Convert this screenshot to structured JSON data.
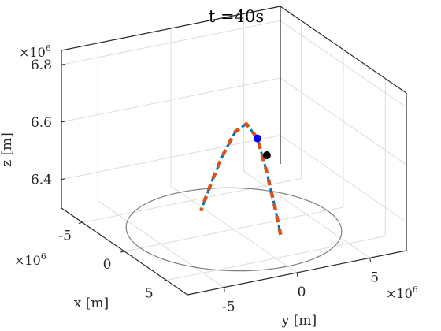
{
  "chart_data": {
    "type": "line3d",
    "title": "t =40s",
    "xlabel": "x [m]",
    "ylabel": "y [m]",
    "zlabel": "z [m]",
    "exponent": {
      "x": "×10",
      "y": "×10",
      "z": "×10",
      "power": "6"
    },
    "xlim": [
      -7.5,
      7.5
    ],
    "ylim": [
      -7.5,
      7.5
    ],
    "zlim": [
      6.3,
      6.85
    ],
    "x_ticks": [
      -5,
      0,
      5
    ],
    "x_tick_labels": [
      "-5",
      "0",
      "5"
    ],
    "y_ticks": [
      -5,
      0,
      5
    ],
    "y_tick_labels": [
      "-5",
      "0",
      "5"
    ],
    "z_ticks": [
      6.4,
      6.6,
      6.8
    ],
    "z_tick_labels": [
      "6.4",
      "6.6",
      "6.8"
    ],
    "grid": true,
    "reference_circle": {
      "radius": 6.4,
      "z": 6.3,
      "color": "#808080"
    },
    "series": [
      {
        "style": "dashed",
        "color": "#0072BD",
        "points": [
          [
            -2.2,
            -1.0,
            6.33
          ],
          [
            -1.5,
            -0.6,
            6.45
          ],
          [
            -0.8,
            -0.25,
            6.55
          ],
          [
            0.0,
            0.1,
            6.64
          ],
          [
            0.8,
            0.4,
            6.68
          ],
          [
            1.5,
            0.75,
            6.64
          ],
          [
            2.1,
            1.0,
            6.54
          ],
          [
            2.6,
            1.3,
            6.42
          ],
          [
            3.0,
            1.5,
            6.32
          ]
        ]
      },
      {
        "style": "dashed",
        "color": "#D95319",
        "points": [
          [
            -2.2,
            -1.0,
            6.33
          ],
          [
            -1.5,
            -0.6,
            6.45
          ],
          [
            -0.8,
            -0.25,
            6.55
          ],
          [
            0.0,
            0.1,
            6.64
          ],
          [
            0.8,
            0.4,
            6.68
          ],
          [
            1.5,
            0.75,
            6.64
          ],
          [
            2.1,
            1.0,
            6.54
          ],
          [
            2.6,
            1.3,
            6.42
          ],
          [
            3.0,
            1.5,
            6.32
          ]
        ]
      }
    ],
    "markers": [
      {
        "x": 1.5,
        "y": 0.75,
        "z": 6.64,
        "color": "#0000FF"
      },
      {
        "x": 2.1,
        "y": 1.05,
        "z": 6.59,
        "color": "#000000"
      }
    ]
  }
}
